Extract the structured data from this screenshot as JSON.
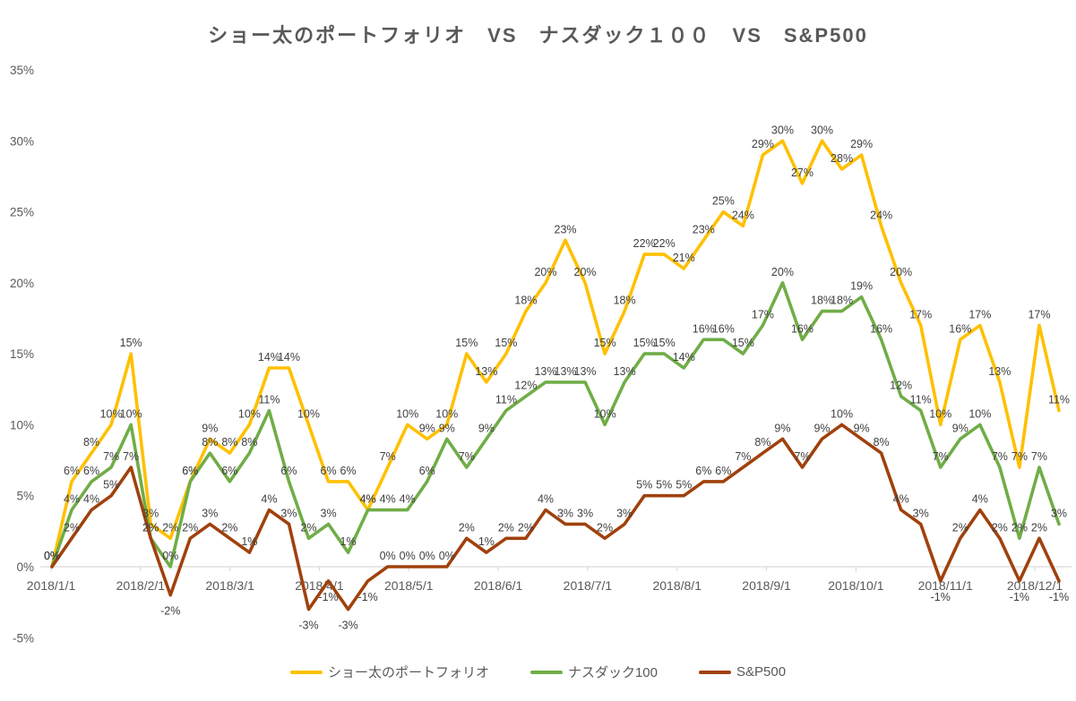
{
  "chart_data": {
    "type": "line",
    "title": "ショー太のポートフォリオ　VS　ナスダック１００　VS　S&P500",
    "x_unit": "weekly points, Jan–Dec 2018",
    "x_axis_labels": [
      "2018/1/1",
      "2018/2/1",
      "2018/3/1",
      "2018/4/1",
      "2018/5/1",
      "2018/6/1",
      "2018/7/1",
      "2018/8/1",
      "2018/9/1",
      "2018/10/1",
      "2018/11/1",
      "2018/12/1"
    ],
    "y_axis_ticks": [
      "35%",
      "30%",
      "25%",
      "20%",
      "15%",
      "10%",
      "5%",
      "0%",
      "-5%"
    ],
    "y_tick_values": [
      35,
      30,
      25,
      20,
      15,
      10,
      5,
      0,
      -5
    ],
    "ylim": [
      -5,
      35
    ],
    "gridlines": "none",
    "axis_line": "0% horizontal baseline only",
    "point_labels": "every point labeled as integer percent",
    "legend_position": "bottom",
    "label_color": "#404040",
    "axis_text_color": "#595959",
    "series": [
      {
        "name": "ショー太のポートフォリオ",
        "color": "#FFC000",
        "values": [
          0,
          6,
          8,
          10,
          15,
          3,
          2,
          6,
          9,
          8,
          10,
          14,
          14,
          10,
          6,
          6,
          4,
          7,
          10,
          9,
          10,
          15,
          13,
          15,
          18,
          20,
          23,
          20,
          15,
          18,
          22,
          22,
          21,
          23,
          25,
          24,
          29,
          30,
          27,
          30,
          28,
          29,
          24,
          20,
          17,
          10,
          16,
          17,
          13,
          7,
          17,
          11
        ]
      },
      {
        "name": "ナスダック100",
        "color": "#70AD47",
        "values": [
          0,
          4,
          6,
          7,
          10,
          2,
          0,
          6,
          8,
          6,
          8,
          11,
          6,
          2,
          3,
          1,
          4,
          4,
          4,
          6,
          9,
          7,
          9,
          11,
          12,
          13,
          13,
          13,
          10,
          13,
          15,
          15,
          14,
          16,
          16,
          15,
          17,
          20,
          16,
          18,
          18,
          19,
          16,
          12,
          11,
          7,
          9,
          10,
          7,
          2,
          7,
          3
        ]
      },
      {
        "name": "S&P500",
        "color": "#A0410D",
        "values": [
          0,
          2,
          4,
          5,
          7,
          2,
          -2,
          2,
          3,
          2,
          1,
          4,
          3,
          -3,
          -1,
          -3,
          -1,
          0,
          0,
          0,
          0,
          2,
          1,
          2,
          2,
          4,
          3,
          3,
          2,
          3,
          5,
          5,
          5,
          6,
          6,
          7,
          8,
          9,
          7,
          9,
          10,
          9,
          8,
          4,
          3,
          -1,
          2,
          4,
          2,
          -1,
          2,
          -1
        ]
      }
    ]
  }
}
